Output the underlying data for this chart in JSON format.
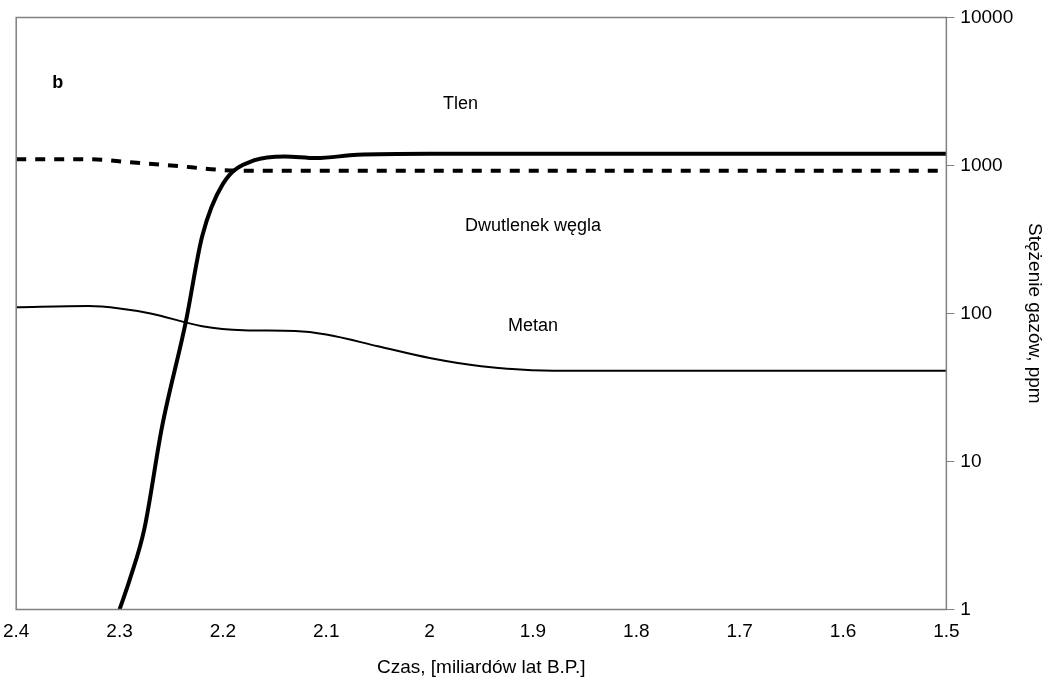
{
  "chart_data": {
    "type": "line",
    "xlabel": "Czas, [miliardów lat B.P.]",
    "ylabel": "Stężenie gazów, ppm",
    "log": "y",
    "grid": false,
    "legend": false,
    "marker": "none",
    "xlim": [
      2.4,
      1.5
    ],
    "xticks": [
      2.4,
      2.3,
      2.2,
      2.1,
      2,
      1.9,
      1.8,
      1.7,
      1.6,
      1.5
    ],
    "ylim": [
      1,
      10000
    ],
    "yticks": [
      1,
      10,
      100,
      1000,
      10000
    ],
    "annotations": [
      "b"
    ],
    "series": [
      {
        "name": "Tlen",
        "color": "#000000",
        "line_style": "solid",
        "x": [
          2.3,
          2.29,
          2.276,
          2.259,
          2.236,
          2.22,
          2.2,
          2.17,
          2.14,
          2.11,
          2.07,
          2.0,
          1.9,
          1.7,
          1.5
        ],
        "values": [
          1,
          1.6,
          3.5,
          17,
          87,
          333,
          750,
          1080,
          1150,
          1120,
          1180,
          1200,
          1200,
          1200,
          1200
        ]
      },
      {
        "name": "Dwutlenek węgla",
        "color": "#000000",
        "line_style": "dashed",
        "x": [
          2.4,
          2.33,
          2.29,
          2.25,
          2.2,
          2.17,
          2.0,
          1.8,
          1.5
        ],
        "values": [
          1100,
          1100,
          1050,
          1000,
          930,
          920,
          920,
          920,
          920
        ]
      },
      {
        "name": "Metan",
        "color": "#000000",
        "line_style": "solid",
        "x": [
          2.4,
          2.33,
          2.3,
          2.27,
          2.22,
          2.18,
          2.13,
          2.1,
          2.05,
          2.0,
          1.95,
          1.88,
          1.8,
          1.5
        ],
        "values": [
          110,
          112,
          108,
          100,
          82,
          77,
          76,
          72,
          60,
          50,
          44,
          41,
          41,
          41
        ]
      }
    ]
  }
}
